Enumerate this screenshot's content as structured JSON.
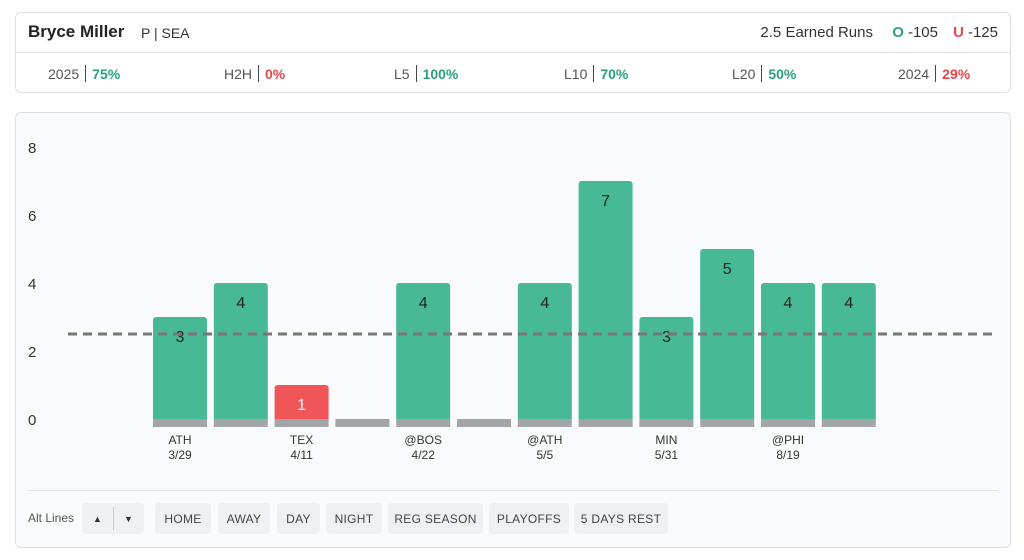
{
  "player": {
    "name": "Bryce Miller",
    "meta": "P | SEA"
  },
  "prop": {
    "line_label": "2.5 Earned Runs",
    "over_letter": "O",
    "over_odds": "-105",
    "under_letter": "U",
    "under_odds": "-125"
  },
  "stats": [
    {
      "label": "2025",
      "value": "75%",
      "status": "good"
    },
    {
      "label": "H2H",
      "value": "0%",
      "status": "bad"
    },
    {
      "label": "L5",
      "value": "100%",
      "status": "good"
    },
    {
      "label": "L10",
      "value": "70%",
      "status": "good"
    },
    {
      "label": "L20",
      "value": "50%",
      "status": "good"
    },
    {
      "label": "2024",
      "value": "29%",
      "status": "bad"
    }
  ],
  "colors": {
    "over": "#47b994",
    "under": "#f05557",
    "base": "#a3a5a8",
    "line": "#777777"
  },
  "chart_data": {
    "type": "bar",
    "threshold": 2.5,
    "ylim": [
      0,
      8
    ],
    "yticks": [
      "0",
      "2",
      "4",
      "6",
      "8"
    ],
    "bars": [
      {
        "value": 3,
        "label": "3",
        "opp": "ATH",
        "date": "3/29"
      },
      {
        "value": 4,
        "label": "4",
        "opp": "",
        "date": ""
      },
      {
        "value": 1,
        "label": "1",
        "opp": "TEX",
        "date": "4/11"
      },
      {
        "value": 0,
        "label": "",
        "opp": "",
        "date": ""
      },
      {
        "value": 4,
        "label": "4",
        "opp": "@BOS",
        "date": "4/22"
      },
      {
        "value": 0,
        "label": "",
        "opp": "",
        "date": ""
      },
      {
        "value": 4,
        "label": "4",
        "opp": "@ATH",
        "date": "5/5"
      },
      {
        "value": 7,
        "label": "7",
        "opp": "",
        "date": ""
      },
      {
        "value": 3,
        "label": "3",
        "opp": "MIN",
        "date": "5/31"
      },
      {
        "value": 5,
        "label": "5",
        "opp": "",
        "date": ""
      },
      {
        "value": 4,
        "label": "4",
        "opp": "@PHI",
        "date": "8/19"
      },
      {
        "value": 4,
        "label": "4",
        "opp": "",
        "date": ""
      }
    ]
  },
  "filters": {
    "alt_label": "Alt Lines",
    "alt_up": "▲",
    "alt_down": "▼",
    "buttons": [
      "HOME",
      "AWAY",
      "DAY",
      "NIGHT",
      "REG SEASON",
      "PLAYOFFS",
      "5 DAYS REST"
    ]
  }
}
